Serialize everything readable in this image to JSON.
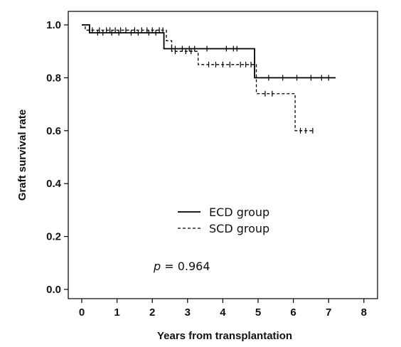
{
  "chart_data": {
    "type": "line",
    "subtype": "kaplan-meier step curve",
    "title": "",
    "xlabel": "Years from transplantation",
    "ylabel": "Graft survival rate",
    "xlim": [
      0,
      8
    ],
    "ylim": [
      0,
      1.0
    ],
    "x_ticks": [
      "0",
      "1",
      "2",
      "3",
      "4",
      "5",
      "6",
      "7",
      "8"
    ],
    "y_ticks": [
      "0.0",
      "0.2",
      "0.4",
      "0.6",
      "0.8",
      "1.0"
    ],
    "legend_position": "center",
    "grid": false,
    "annotation": {
      "symbol": "p",
      "text": " = 0.964"
    },
    "series": [
      {
        "name": "ECD group",
        "style": "solid",
        "color": "#000000",
        "steps": [
          [
            0,
            1.0
          ],
          [
            0.22,
            0.97
          ],
          [
            2.33,
            0.91
          ],
          [
            4.9,
            0.8
          ],
          [
            7.2,
            0.8
          ]
        ],
        "censored": [
          0.45,
          0.6,
          0.85,
          1.05,
          1.4,
          1.6,
          1.9,
          2.1,
          2.55,
          2.65,
          2.85,
          3.05,
          3.2,
          3.55,
          4.1,
          4.3,
          4.4,
          5.3,
          5.7,
          6.1,
          6.5,
          6.8,
          7.0
        ]
      },
      {
        "name": "SCD group",
        "style": "dashed",
        "color": "#000000",
        "steps": [
          [
            0,
            1.0
          ],
          [
            0.1,
            0.98
          ],
          [
            2.4,
            0.94
          ],
          [
            2.55,
            0.9
          ],
          [
            3.3,
            0.85
          ],
          [
            4.95,
            0.74
          ],
          [
            6.05,
            0.6
          ],
          [
            6.6,
            0.6
          ]
        ],
        "censored": [
          0.3,
          0.5,
          0.7,
          0.8,
          0.95,
          1.1,
          1.25,
          1.5,
          1.7,
          1.85,
          2.0,
          2.2,
          2.3,
          2.65,
          2.95,
          3.1,
          3.6,
          3.8,
          4.0,
          4.2,
          4.5,
          4.65,
          4.8,
          5.2,
          5.4,
          6.2,
          6.35,
          6.55
        ]
      }
    ]
  }
}
